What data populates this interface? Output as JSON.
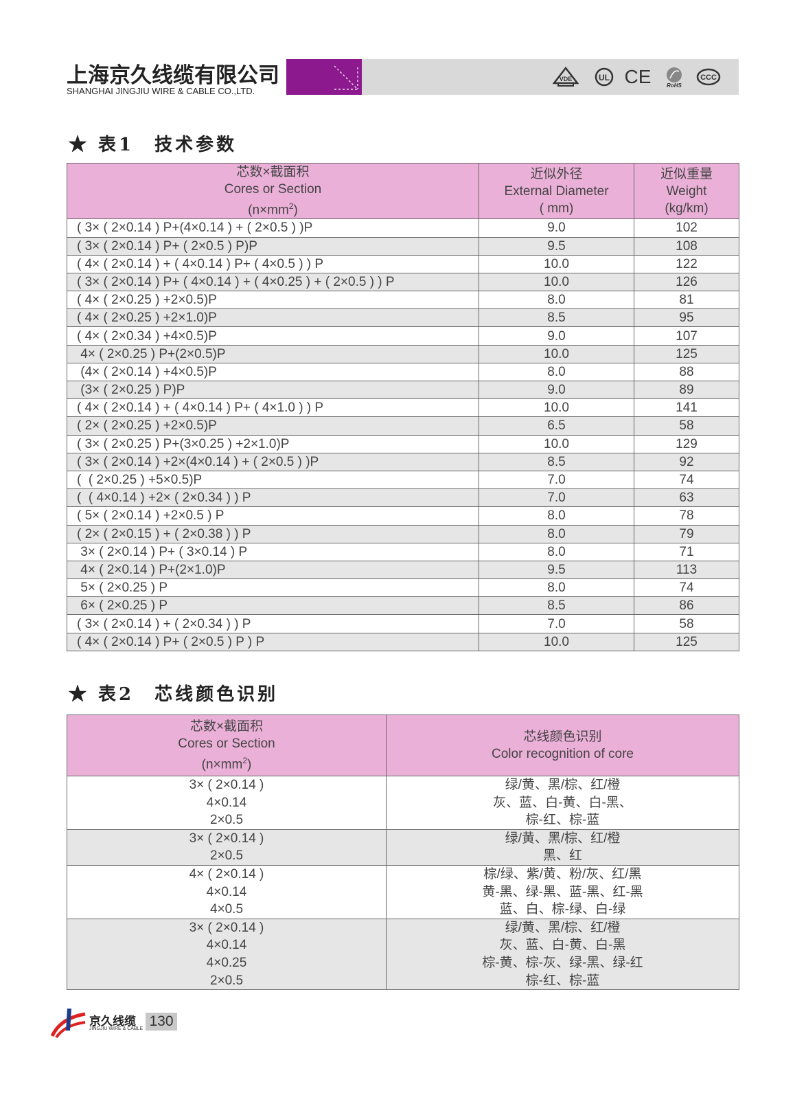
{
  "header": {
    "company_cn": "上海京久线缆有限公司",
    "company_en": "SHANGHAI JINGJIU WIRE & CABLE CO.,LTD.",
    "brand_color": "#8c1a8e",
    "certifications": [
      "VDE",
      "UL",
      "CE",
      "RoHS",
      "CCC"
    ]
  },
  "table1": {
    "heading": "★ 表1　技术参数",
    "columns": [
      {
        "cn": "芯数×截面积",
        "en": "Cores or Section",
        "unit": "(n×mm",
        "unit_sup": "2",
        "unit_end": ")"
      },
      {
        "cn": "近似外径",
        "en": "External Diameter",
        "unit": "( mm)"
      },
      {
        "cn": "近似重量",
        "en": "Weight",
        "unit": "(kg/km)"
      }
    ],
    "rows": [
      [
        "( 3× ( 2×0.14 ) P+(4×0.14 ) + ( 2×0.5 ) )P",
        "9.0",
        "102"
      ],
      [
        "( 3× ( 2×0.14 ) P+ ( 2×0.5 ) P)P",
        "9.5",
        "108"
      ],
      [
        "( 4× ( 2×0.14 ) + ( 4×0.14 ) P+ ( 4×0.5 ) ) P",
        "10.0",
        "122"
      ],
      [
        "( 3× ( 2×0.14 ) P+ ( 4×0.14 ) + ( 4×0.25 ) + ( 2×0.5 ) ) P",
        "10.0",
        "126"
      ],
      [
        "( 4× ( 2×0.25 ) +2×0.5)P",
        "8.0",
        "81"
      ],
      [
        "( 4× ( 2×0.25 ) +2×1.0)P",
        "8.5",
        "95"
      ],
      [
        "( 4× ( 2×0.34 ) +4×0.5)P",
        "9.0",
        "107"
      ],
      [
        " 4× ( 2×0.25 ) P+(2×0.5)P",
        "10.0",
        "125"
      ],
      [
        " (4× ( 2×0.14 ) +4×0.5)P",
        "8.0",
        "88"
      ],
      [
        " (3× ( 2×0.25 ) P)P",
        "9.0",
        "89"
      ],
      [
        "( 4× ( 2×0.14 ) + ( 4×0.14 ) P+ ( 4×1.0 ) ) P",
        "10.0",
        "141"
      ],
      [
        "( 2× ( 2×0.25 ) +2×0.5)P",
        "6.5",
        "58"
      ],
      [
        "( 3× ( 2×0.25 ) P+(3×0.25 ) +2×1.0)P",
        "10.0",
        "129"
      ],
      [
        "( 3× ( 2×0.14 ) +2×(4×0.14 ) + ( 2×0.5 ) )P",
        "8.5",
        "92"
      ],
      [
        "(  ( 2×0.25 ) +5×0.5)P",
        "7.0",
        "74"
      ],
      [
        "(  ( 4×0.14 ) +2× ( 2×0.34 ) ) P",
        "7.0",
        "63"
      ],
      [
        "( 5× ( 2×0.14 ) +2×0.5 ) P",
        "8.0",
        "78"
      ],
      [
        "( 2× ( 2×0.15 ) + ( 2×0.38 ) ) P",
        "8.0",
        "79"
      ],
      [
        " 3× ( 2×0.14 ) P+ ( 3×0.14 ) P",
        "8.0",
        "71"
      ],
      [
        " 4× ( 2×0.14 ) P+(2×1.0)P",
        "9.5",
        "113"
      ],
      [
        " 5× ( 2×0.25 ) P",
        "8.0",
        "74"
      ],
      [
        " 6× ( 2×0.25 ) P",
        "8.5",
        "86"
      ],
      [
        "( 3× ( 2×0.14 ) + ( 2×0.34 ) ) P",
        "7.0",
        "58"
      ],
      [
        "( 4× ( 2×0.14 ) P+ ( 2×0.5 ) P ) P",
        "10.0",
        "125"
      ]
    ]
  },
  "table2": {
    "heading": "★ 表2　芯线颜色识别",
    "columns": [
      {
        "cn": "芯数×截面积",
        "en": "Cores or Section",
        "unit": "(n×mm",
        "unit_sup": "2",
        "unit_end": ")"
      },
      {
        "cn": "芯线颜色识别",
        "en": "Color recognition of core"
      }
    ],
    "rows": [
      {
        "cores": [
          "3× ( 2×0.14 )",
          "4×0.14",
          "2×0.5"
        ],
        "colors": [
          "绿/黄、黑/棕、红/橙",
          "灰、蓝、白-黄、白-黑、",
          "棕-红、棕-蓝"
        ]
      },
      {
        "cores": [
          "3× ( 2×0.14 )",
          "2×0.5"
        ],
        "colors": [
          "绿/黄、黑/棕、红/橙",
          "黑、红"
        ]
      },
      {
        "cores": [
          "4× ( 2×0.14 )",
          "4×0.14",
          "4×0.5"
        ],
        "colors": [
          "棕/绿、紫/黄、粉/灰、红/黑",
          "黄-黑、绿-黑、蓝-黑、红-黑",
          "蓝、白、棕-绿、白-绿"
        ]
      },
      {
        "cores": [
          "3× ( 2×0.14 )",
          "4×0.14",
          "4×0.25",
          "2×0.5"
        ],
        "colors": [
          "绿/黄、黑/棕、红/橙",
          "灰、蓝、白-黄、白-黑",
          "棕-黄、棕-灰、绿-黑、绿-红",
          "棕-红、棕-蓝"
        ]
      }
    ]
  },
  "footer": {
    "brand_cn": "京久线缆",
    "brand_en": "JINGJIU WIRE & CABLE",
    "page_number": "130"
  },
  "colors": {
    "header_pink": "#ebb0d8",
    "row_gray": "#e6e6e6"
  }
}
